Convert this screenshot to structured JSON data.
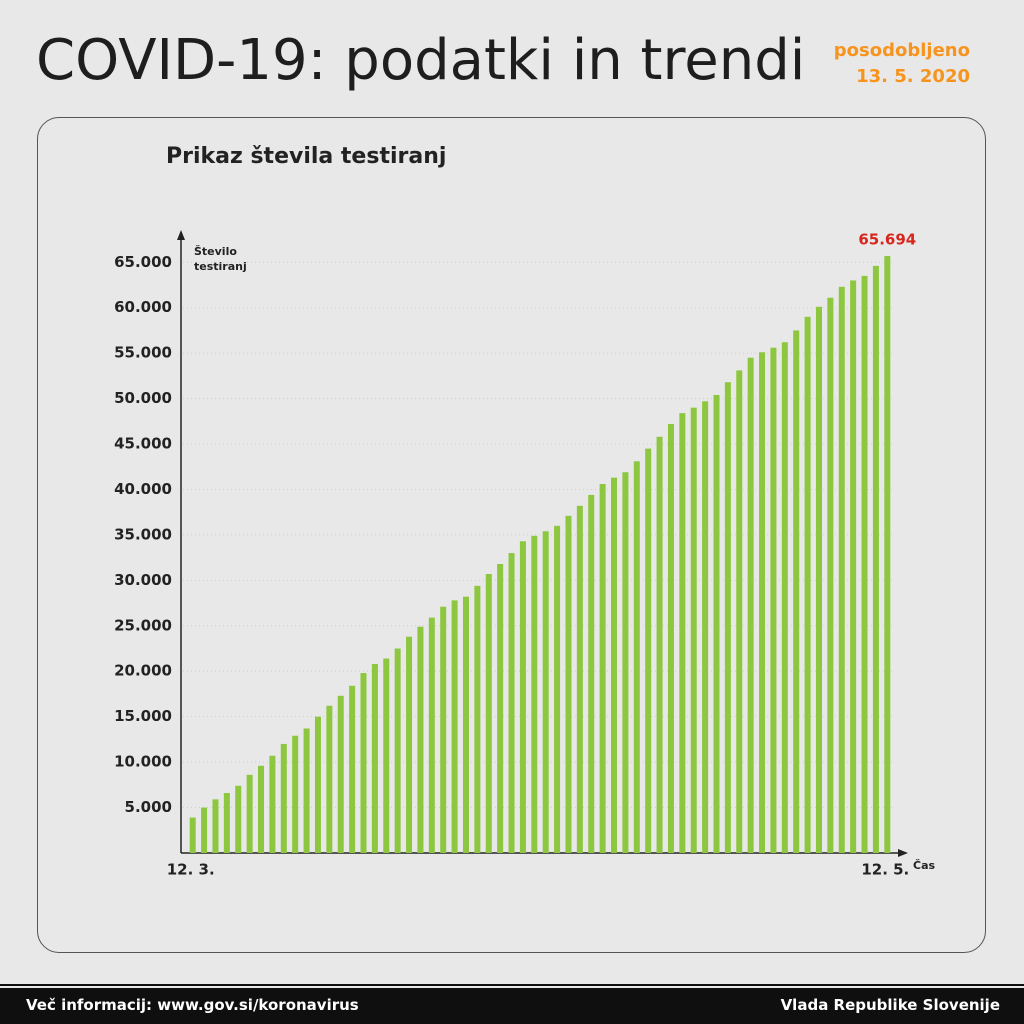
{
  "header": {
    "title": "COVID-19: podatki in trendi",
    "updated_label": "posodobljeno",
    "updated_date": "13. 5. 2020"
  },
  "chart_data": {
    "type": "bar",
    "title": "Prikaz števila testiranj",
    "ylabel": "Število testiranj",
    "xlabel": "Čas",
    "categories": [
      "12. 3.",
      null,
      null,
      null,
      null,
      null,
      null,
      null,
      null,
      null,
      null,
      null,
      null,
      null,
      null,
      null,
      null,
      null,
      null,
      null,
      null,
      null,
      null,
      null,
      null,
      null,
      null,
      null,
      null,
      null,
      null,
      null,
      null,
      null,
      null,
      null,
      null,
      null,
      null,
      null,
      null,
      null,
      null,
      null,
      null,
      null,
      null,
      null,
      null,
      null,
      null,
      null,
      null,
      null,
      null,
      null,
      null,
      null,
      null,
      null,
      null,
      "12. 5."
    ],
    "values": [
      3900,
      5000,
      5900,
      6600,
      7400,
      8600,
      9600,
      10700,
      12000,
      12900,
      13700,
      15000,
      16200,
      17300,
      18400,
      19800,
      20800,
      21400,
      22500,
      23800,
      24900,
      25900,
      27100,
      27800,
      28200,
      29400,
      30700,
      31800,
      33000,
      34300,
      34900,
      35400,
      36000,
      37100,
      38200,
      39400,
      40600,
      41300,
      41900,
      43100,
      44500,
      45800,
      47200,
      48400,
      49000,
      49700,
      50400,
      51800,
      53100,
      54500,
      55100,
      55600,
      56200,
      57500,
      59000,
      60100,
      61100,
      62300,
      63000,
      63500,
      64600,
      65694
    ],
    "value_labels": [
      null,
      null,
      null,
      null,
      null,
      null,
      null,
      null,
      null,
      null,
      null,
      null,
      null,
      null,
      null,
      null,
      null,
      null,
      null,
      null,
      null,
      null,
      null,
      null,
      null,
      null,
      null,
      null,
      null,
      null,
      null,
      null,
      null,
      null,
      null,
      null,
      null,
      null,
      null,
      null,
      null,
      null,
      null,
      null,
      null,
      null,
      null,
      null,
      null,
      null,
      null,
      null,
      null,
      null,
      null,
      null,
      null,
      null,
      null,
      null,
      null,
      "65.694"
    ],
    "color": "#8dc63f",
    "label_color": "#d7261e",
    "ylim": [
      0,
      68000
    ],
    "yticks": [
      {
        "value": 5000,
        "label": "5.000"
      },
      {
        "value": 10000,
        "label": "10.000"
      },
      {
        "value": 15000,
        "label": "15.000"
      },
      {
        "value": 20000,
        "label": "20.000"
      },
      {
        "value": 25000,
        "label": "25.000"
      },
      {
        "value": 30000,
        "label": "30.000"
      },
      {
        "value": 35000,
        "label": "35.000"
      },
      {
        "value": 40000,
        "label": "40.000"
      },
      {
        "value": 45000,
        "label": "45.000"
      },
      {
        "value": 50000,
        "label": "50.000"
      },
      {
        "value": 55000,
        "label": "55.000"
      },
      {
        "value": 60000,
        "label": "60.000"
      },
      {
        "value": 65000,
        "label": "65.000"
      }
    ],
    "grid": true
  },
  "footer": {
    "info": "Več informacij: www.gov.si/koronavirus",
    "source": "Vlada Republike Slovenije"
  }
}
